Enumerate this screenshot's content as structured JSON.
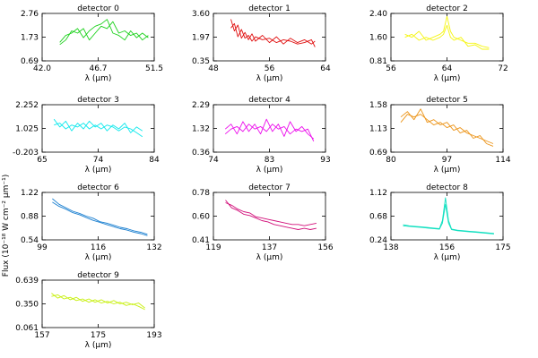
{
  "chart_data": {
    "type": "line",
    "ylabel": "Flux (10⁻¹⁸ W cm⁻² μm⁻¹)",
    "grid": false,
    "panels": [
      {
        "title": "detector 0",
        "xlabel": "λ (μm)",
        "color": "#1cd11c",
        "xlim": [
          42.0,
          51.5
        ],
        "ylim": [
          0.69,
          2.76
        ],
        "xticks": [
          "42.0",
          "46.7",
          "51.5"
        ],
        "yticks": [
          "0.69",
          "1.73",
          "2.76"
        ],
        "series": [
          {
            "x": [
              43.5,
              44.0,
              44.5,
              45.0,
              45.5,
              46.0,
              46.5,
              47.0,
              47.5,
              48.0,
              48.5,
              49.0,
              49.5,
              50.0,
              50.5,
              51.0
            ],
            "y": [
              1.5,
              1.8,
              1.9,
              2.1,
              1.7,
              2.0,
              2.2,
              2.3,
              2.5,
              1.9,
              1.8,
              1.6,
              2.0,
              1.7,
              1.9,
              1.7
            ]
          },
          {
            "x": [
              43.5,
              44.0,
              44.5,
              45.0,
              45.5,
              46.0,
              46.5,
              47.0,
              47.5,
              48.0,
              48.5,
              49.0,
              49.5,
              50.0,
              50.5,
              51.0
            ],
            "y": [
              1.4,
              1.6,
              2.0,
              1.9,
              2.1,
              1.6,
              1.9,
              2.2,
              2.1,
              2.4,
              1.9,
              2.0,
              1.8,
              1.9,
              1.6,
              1.8
            ]
          }
        ]
      },
      {
        "title": "detector 1",
        "xlabel": "λ (μm)",
        "color": "#e01010",
        "xlim": [
          48,
          64
        ],
        "ylim": [
          0.35,
          3.6
        ],
        "xticks": [
          "48",
          "56",
          "64"
        ],
        "yticks": [
          "0.35",
          "1.97",
          "3.60"
        ],
        "series": [
          {
            "x": [
              50.5,
              51,
              51.5,
              52,
              52.5,
              53,
              53.5,
              54,
              55,
              56,
              57,
              58,
              59,
              60,
              61,
              62,
              62.5
            ],
            "y": [
              3.2,
              2.4,
              2.8,
              1.9,
              2.3,
              1.8,
              2.2,
              1.7,
              2.1,
              1.6,
              2.0,
              1.5,
              1.9,
              1.6,
              1.8,
              1.5,
              1.7
            ]
          },
          {
            "x": [
              50.5,
              51,
              51.5,
              52,
              52.5,
              53,
              53.5,
              54,
              55,
              56,
              57,
              58,
              59,
              60,
              61,
              62,
              62.5
            ],
            "y": [
              2.6,
              2.9,
              2.0,
              2.5,
              1.9,
              2.1,
              1.7,
              2.0,
              1.8,
              1.9,
              1.6,
              1.8,
              1.7,
              1.5,
              1.6,
              1.8,
              1.3
            ]
          }
        ]
      },
      {
        "title": "detector 2",
        "xlabel": "λ (μm)",
        "color": "#f5f510",
        "xlim": [
          56,
          72
        ],
        "ylim": [
          0.81,
          2.4
        ],
        "xticks": [
          "56",
          "64",
          "72"
        ],
        "yticks": [
          "0.81",
          "1.60",
          "2.40"
        ],
        "series": [
          {
            "x": [
              58,
              59,
              60,
              61,
              62,
              63,
              63.5,
              64,
              64.5,
              65,
              66,
              67,
              68,
              69,
              70
            ],
            "y": [
              1.7,
              1.6,
              1.8,
              1.5,
              1.6,
              1.7,
              1.8,
              2.3,
              1.8,
              1.6,
              1.5,
              1.4,
              1.4,
              1.3,
              1.25
            ]
          },
          {
            "x": [
              58,
              59,
              60,
              61,
              62,
              63,
              63.5,
              64,
              64.5,
              65,
              66,
              67,
              68,
              69,
              70
            ],
            "y": [
              1.6,
              1.7,
              1.5,
              1.6,
              1.5,
              1.6,
              1.7,
              2.0,
              1.6,
              1.5,
              1.6,
              1.3,
              1.35,
              1.2,
              1.2
            ]
          }
        ]
      },
      {
        "title": "detector 3",
        "xlabel": "λ (μm)",
        "color": "#10e8ec",
        "xlim": [
          65,
          84
        ],
        "ylim": [
          -0.203,
          2.252
        ],
        "xticks": [
          "65",
          "74",
          "84"
        ],
        "yticks": [
          "-0.203",
          "1.025",
          "2.252"
        ],
        "series": [
          {
            "x": [
              67,
              68,
              69,
              70,
              71,
              72,
              73,
              74,
              75,
              76,
              77,
              78,
              79,
              80,
              81,
              82
            ],
            "y": [
              1.5,
              1.1,
              1.4,
              0.9,
              1.3,
              1.0,
              1.4,
              1.1,
              1.3,
              0.9,
              1.2,
              1.0,
              1.3,
              0.8,
              1.1,
              0.9
            ]
          },
          {
            "x": [
              67,
              68,
              69,
              70,
              71,
              72,
              73,
              74,
              75,
              76,
              77,
              78,
              79,
              80,
              81,
              82
            ],
            "y": [
              1.2,
              1.3,
              1.0,
              1.2,
              1.1,
              1.3,
              1.0,
              1.2,
              1.0,
              1.2,
              1.1,
              0.9,
              1.1,
              1.0,
              0.8,
              0.6
            ]
          }
        ]
      },
      {
        "title": "detector 4",
        "xlabel": "λ (μm)",
        "color": "#ec10ec",
        "xlim": [
          74,
          93
        ],
        "ylim": [
          0.36,
          2.29
        ],
        "xticks": [
          "74",
          "83",
          "93"
        ],
        "yticks": [
          "0.36",
          "1.32",
          "2.29"
        ],
        "series": [
          {
            "x": [
              76,
              77,
              78,
              79,
              80,
              81,
              82,
              83,
              84,
              85,
              86,
              87,
              88,
              89,
              90,
              91
            ],
            "y": [
              1.3,
              1.5,
              1.1,
              1.6,
              1.2,
              1.5,
              1.1,
              1.7,
              1.2,
              1.5,
              1.0,
              1.6,
              1.2,
              1.4,
              1.1,
              0.9
            ]
          },
          {
            "x": [
              76,
              77,
              78,
              79,
              80,
              81,
              82,
              83,
              84,
              85,
              86,
              87,
              88,
              89,
              90,
              91
            ],
            "y": [
              1.1,
              1.3,
              1.4,
              1.2,
              1.5,
              1.3,
              1.4,
              1.2,
              1.5,
              1.3,
              1.4,
              1.1,
              1.3,
              1.2,
              1.3,
              0.8
            ]
          }
        ]
      },
      {
        "title": "detector 5",
        "xlabel": "λ (μm)",
        "color": "#ec9418",
        "xlim": [
          80,
          114
        ],
        "ylim": [
          0.69,
          1.58
        ],
        "xticks": [
          "80",
          "97",
          "114"
        ],
        "yticks": [
          "0.69",
          "1.13",
          "1.58"
        ],
        "series": [
          {
            "x": [
              83,
              85,
              87,
              89,
              91,
              93,
              95,
              97,
              99,
              101,
              103,
              105,
              107,
              109,
              111
            ],
            "y": [
              1.35,
              1.45,
              1.3,
              1.5,
              1.25,
              1.3,
              1.2,
              1.25,
              1.1,
              1.15,
              1.05,
              1.0,
              0.95,
              0.9,
              0.85
            ]
          },
          {
            "x": [
              83,
              85,
              87,
              89,
              91,
              93,
              95,
              97,
              99,
              101,
              103,
              105,
              107,
              109,
              111
            ],
            "y": [
              1.25,
              1.4,
              1.35,
              1.4,
              1.3,
              1.2,
              1.25,
              1.15,
              1.2,
              1.05,
              1.1,
              0.95,
              1.0,
              0.85,
              0.8
            ]
          }
        ]
      },
      {
        "title": "detector 6",
        "xlabel": "λ (μm)",
        "color": "#1a7fd0",
        "xlim": [
          99,
          132
        ],
        "ylim": [
          0.54,
          1.22
        ],
        "xticks": [
          "99",
          "116",
          "132"
        ],
        "yticks": [
          "0.54",
          "0.88",
          "1.22"
        ],
        "series": [
          {
            "x": [
              102,
              104,
              106,
              108,
              110,
              112,
              114,
              116,
              118,
              120,
              122,
              124,
              126,
              128,
              130
            ],
            "y": [
              1.13,
              1.05,
              1.0,
              0.95,
              0.92,
              0.88,
              0.85,
              0.8,
              0.78,
              0.75,
              0.72,
              0.7,
              0.67,
              0.65,
              0.62
            ]
          },
          {
            "x": [
              102,
              104,
              106,
              108,
              110,
              112,
              114,
              116,
              118,
              120,
              122,
              124,
              126,
              128,
              130
            ],
            "y": [
              1.08,
              1.02,
              0.98,
              0.93,
              0.9,
              0.86,
              0.82,
              0.79,
              0.76,
              0.73,
              0.7,
              0.68,
              0.65,
              0.63,
              0.6
            ]
          }
        ]
      },
      {
        "title": "detector 7",
        "xlabel": "λ (μm)",
        "color": "#d2107a",
        "xlim": [
          119,
          156
        ],
        "ylim": [
          0.41,
          0.78
        ],
        "xticks": [
          "119",
          "137",
          "156"
        ],
        "yticks": [
          "0.41",
          "0.60",
          "0.78"
        ],
        "series": [
          {
            "x": [
              123,
              125,
              127,
              129,
              131,
              133,
              135,
              137,
              139,
              141,
              143,
              145,
              147,
              149,
              151,
              153
            ],
            "y": [
              0.72,
              0.66,
              0.64,
              0.61,
              0.6,
              0.58,
              0.56,
              0.55,
              0.53,
              0.52,
              0.51,
              0.5,
              0.49,
              0.5,
              0.49,
              0.5
            ]
          },
          {
            "x": [
              123,
              125,
              127,
              129,
              131,
              133,
              135,
              137,
              139,
              141,
              143,
              145,
              147,
              149,
              151,
              153
            ],
            "y": [
              0.7,
              0.68,
              0.65,
              0.63,
              0.62,
              0.59,
              0.58,
              0.57,
              0.56,
              0.55,
              0.54,
              0.53,
              0.53,
              0.52,
              0.53,
              0.54
            ]
          }
        ]
      },
      {
        "title": "detector 8",
        "xlabel": "λ (μm)",
        "color": "#10e0c0",
        "xlim": [
          138,
          175
        ],
        "ylim": [
          0.24,
          1.12
        ],
        "xticks": [
          "138",
          "156",
          "175"
        ],
        "yticks": [
          "0.24",
          "0.68",
          "1.12"
        ],
        "series": [
          {
            "x": [
              142,
              144,
              146,
              148,
              150,
              152,
              154,
              155,
              156,
              157,
              158,
              160,
              162,
              164,
              166,
              168,
              170,
              172
            ],
            "y": [
              0.52,
              0.5,
              0.49,
              0.48,
              0.47,
              0.46,
              0.45,
              0.6,
              1.02,
              0.6,
              0.44,
              0.42,
              0.41,
              0.4,
              0.39,
              0.38,
              0.37,
              0.36
            ]
          },
          {
            "x": [
              142,
              144,
              146,
              148,
              150,
              152,
              154,
              155,
              156,
              157,
              158,
              160,
              162,
              164,
              166,
              168,
              170,
              172
            ],
            "y": [
              0.5,
              0.49,
              0.48,
              0.47,
              0.46,
              0.45,
              0.44,
              0.55,
              0.9,
              0.55,
              0.43,
              0.41,
              0.4,
              0.39,
              0.38,
              0.37,
              0.36,
              0.35
            ]
          }
        ]
      },
      {
        "title": "detector 9",
        "xlabel": "λ (μm)",
        "color": "#c8f010",
        "xlim": [
          157,
          193
        ],
        "ylim": [
          0.061,
          0.639
        ],
        "xticks": [
          "157",
          "175",
          "193"
        ],
        "yticks": [
          "0.061",
          "0.350",
          "0.639"
        ],
        "series": [
          {
            "x": [
              160,
              162,
              164,
              166,
              168,
              170,
              172,
              174,
              176,
              178,
              180,
              182,
              184,
              186,
              188,
              190
            ],
            "y": [
              0.48,
              0.42,
              0.45,
              0.4,
              0.43,
              0.38,
              0.41,
              0.37,
              0.4,
              0.36,
              0.39,
              0.35,
              0.37,
              0.34,
              0.36,
              0.3
            ]
          },
          {
            "x": [
              160,
              162,
              164,
              166,
              168,
              170,
              172,
              174,
              176,
              178,
              180,
              182,
              184,
              186,
              188,
              190
            ],
            "y": [
              0.44,
              0.46,
              0.41,
              0.43,
              0.39,
              0.41,
              0.37,
              0.4,
              0.36,
              0.38,
              0.35,
              0.37,
              0.33,
              0.35,
              0.32,
              0.28
            ]
          }
        ]
      }
    ]
  }
}
